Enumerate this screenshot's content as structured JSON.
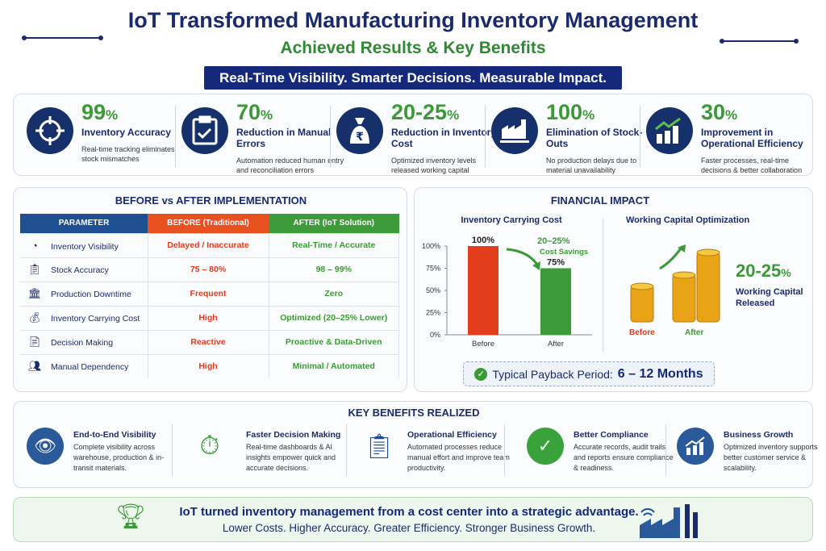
{
  "header": {
    "title": "IoT Transformed Manufacturing Inventory Management",
    "subtitle": "Achieved Results & Key Benefits",
    "banner": "Real-Time Visibility. Smarter Decisions. Measurable Impact."
  },
  "kpis": [
    {
      "icon": "target-icon",
      "value": "99",
      "unit": "%",
      "label": "Inventory Accuracy",
      "desc": "Real-time tracking eliminates stock mismatches"
    },
    {
      "icon": "clipboard-check-icon",
      "value": "70",
      "unit": "%",
      "label": "Reduction in Manual Errors",
      "desc": "Automation reduced human entry and reconciliation errors"
    },
    {
      "icon": "rupee-money-bag-icon",
      "value": "20-25",
      "unit": "%",
      "label": "Reduction in Inventory Cost",
      "desc": "Optimized inventory levels released working capital"
    },
    {
      "icon": "factory-icon",
      "value": "100",
      "unit": "%",
      "label": "Elimination of Stock-Outs",
      "desc": "No production delays due to material unavailability"
    },
    {
      "icon": "growth-chart-icon",
      "value": "30",
      "unit": "%",
      "label": "Improvement in Operational Efficiency",
      "desc": "Faster processes, real-time decisions & better collaboration"
    }
  ],
  "comparison": {
    "title": "BEFORE vs AFTER IMPLEMENTATION",
    "headers": [
      "PARAMETER",
      "BEFORE (Traditional)",
      "AFTER (IoT Solution)"
    ],
    "header_colors": [
      "#1d4f91",
      "#e8501f",
      "#3e9b3a"
    ],
    "rows": [
      {
        "icon": "pie-chart-icon",
        "parameter": "Inventory Visibility",
        "before": "Delayed / Inaccurate",
        "after": "Real-Time / Accurate"
      },
      {
        "icon": "clipboard-icon",
        "parameter": "Stock Accuracy",
        "before": "75 – 80%",
        "after": "98 – 99%"
      },
      {
        "icon": "factory-icon",
        "parameter": "Production Downtime",
        "before": "Frequent",
        "after": "Zero"
      },
      {
        "icon": "money-bag-icon",
        "parameter": "Inventory Carrying Cost",
        "before": "High",
        "after": "Optimized (20–25% Lower)"
      },
      {
        "icon": "document-icon",
        "parameter": "Decision Making",
        "before": "Reactive",
        "after": "Proactive & Data-Driven"
      },
      {
        "icon": "people-icon",
        "parameter": "Manual Dependency",
        "before": "High",
        "after": "Minimal / Automated"
      }
    ]
  },
  "financial": {
    "title": "FINANCIAL IMPACT",
    "savings_value": "20–25%",
    "savings_label": "Cost Savings",
    "capital": {
      "title": "Working Capital Optimization",
      "value": "20-25",
      "unit": "%",
      "label": "Working Capital Released",
      "before": "Before",
      "after": "After"
    },
    "payback_label": "Typical Payback Period:",
    "payback_value": "6 – 12 Months"
  },
  "chart_data": {
    "type": "bar",
    "title": "Inventory Carrying Cost",
    "categories": [
      "Before",
      "After"
    ],
    "values": [
      100,
      75
    ],
    "data_labels": [
      "100%",
      "75%"
    ],
    "colors": [
      "#e23d1c",
      "#3e9b3a"
    ],
    "ylim": [
      0,
      100
    ],
    "yticks": [
      "0%",
      "25%",
      "50%",
      "75%",
      "100%"
    ],
    "xlabel": "",
    "ylabel": ""
  },
  "benefits": {
    "title": "KEY BENEFITS REALIZED",
    "items": [
      {
        "icon": "eye-icon",
        "title": "End-to-End Visibility",
        "desc": "Complete visibility across warehouse, production & in-transit materials."
      },
      {
        "icon": "stopwatch-icon",
        "title": "Faster Decision Making",
        "desc": "Real-time dashboards & AI insights empower quick and accurate decisions."
      },
      {
        "icon": "clipboard-gear-icon",
        "title": "Operational Efficiency",
        "desc": "Automated processes reduce manual effort and improve team productivity."
      },
      {
        "icon": "shield-check-icon",
        "title": "Better Compliance",
        "desc": "Accurate records, audit trails and reports ensure compliance & readiness."
      },
      {
        "icon": "growth-chart-icon",
        "title": "Business Growth",
        "desc": "Optimized inventory supports better customer service & scalability."
      }
    ]
  },
  "footer": {
    "headline": "IoT turned inventory management from a cost center into a strategic advantage.",
    "tagline": "Lower Costs. Higher Accuracy. Greater Efficiency. Stronger Business Growth."
  }
}
